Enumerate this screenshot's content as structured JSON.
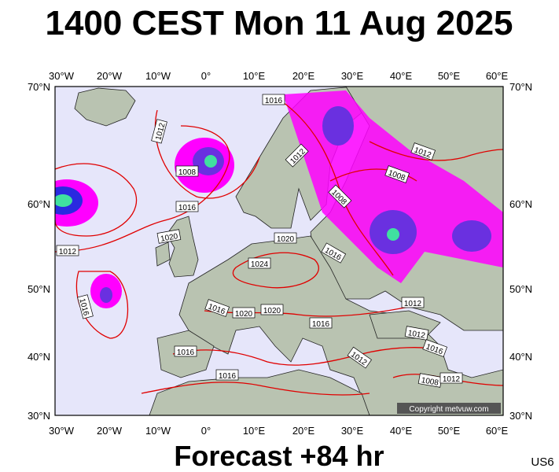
{
  "title": "1400 CEST Mon 11 Aug 2025",
  "footer": "Forecast +84 hr",
  "corner_code": "US6",
  "copyright": "Copyright metvuw.com",
  "map": {
    "longitude_labels": [
      "30°W",
      "20°W",
      "10°W",
      "0°",
      "10°E",
      "20°E",
      "30°E",
      "40°E",
      "50°E",
      "60°E"
    ],
    "latitude_labels": [
      "70°N",
      "60°N",
      "50°N",
      "40°N",
      "30°N"
    ],
    "isobar_labels": [
      "1016",
      "1012",
      "1008",
      "1016",
      "1020",
      "1012",
      "1016",
      "1012",
      "1008",
      "1012",
      "1008",
      "1020",
      "1024",
      "1016",
      "1016",
      "1020",
      "1020",
      "1016",
      "1012",
      "1012",
      "1016",
      "1012",
      "1008",
      "1012",
      "1016",
      "1016"
    ]
  }
}
